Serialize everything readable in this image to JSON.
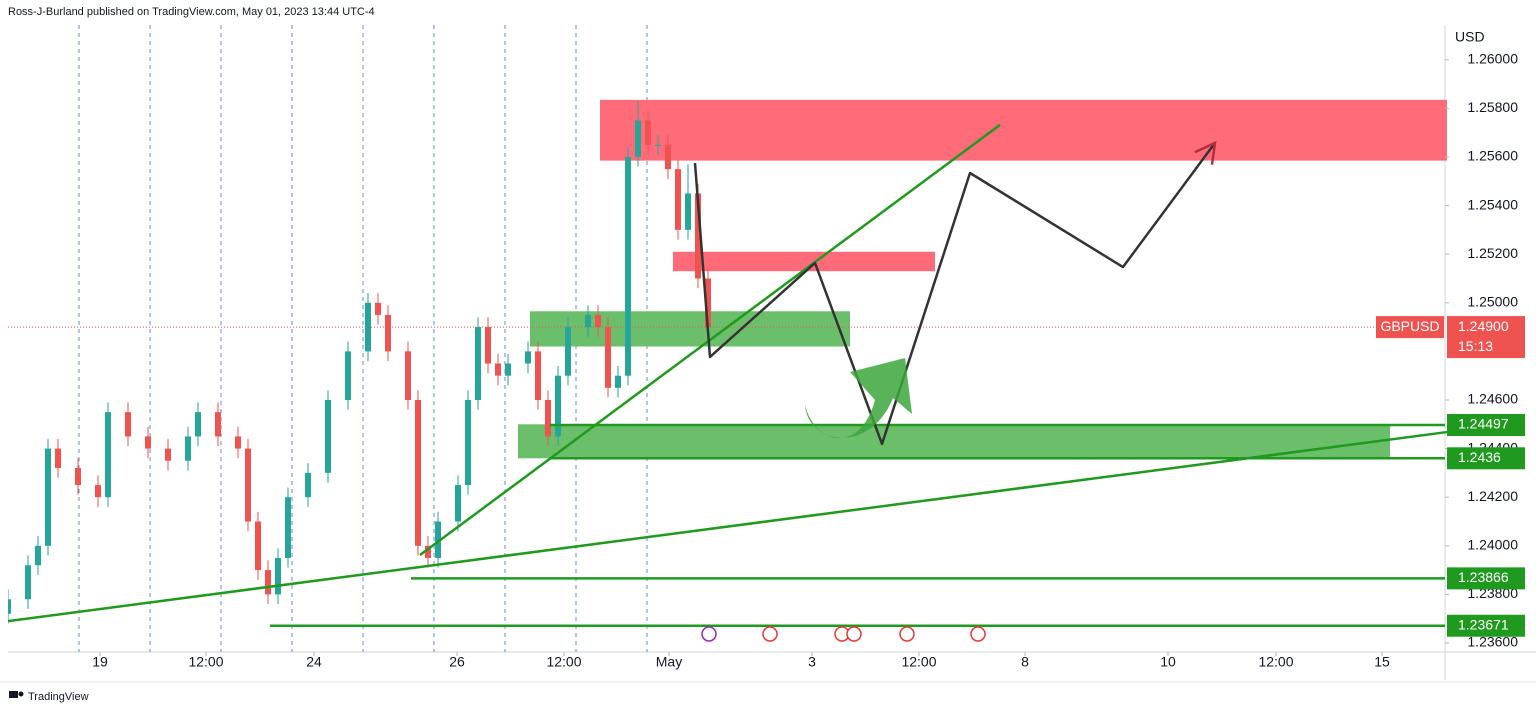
{
  "chart_data": {
    "type": "candlestick",
    "header": "Ross-J-Burland published on TradingView.com, May 01, 2023 13:44 UTC-4",
    "currency": "USD",
    "symbol": "GBPUSD",
    "last_price": {
      "value": 1.249,
      "label": "1.24900"
    },
    "countdown": "15:13",
    "brand": "TradingView",
    "xlim": [
      0,
      143.7
    ],
    "ylim": [
      1.23563,
      1.26143
    ],
    "xticks": [
      {
        "value": 9.2,
        "label": "19"
      },
      {
        "value": 19.8,
        "label": "12:00"
      },
      {
        "value": 30.6,
        "label": "24"
      },
      {
        "value": 44.9,
        "label": "26"
      },
      {
        "value": 55.6,
        "label": "12:00"
      },
      {
        "value": 66.1,
        "label": "May"
      },
      {
        "value": 80.4,
        "label": "3"
      },
      {
        "value": 91.1,
        "label": "12:00"
      },
      {
        "value": 101.7,
        "label": "8"
      },
      {
        "value": 116,
        "label": "10"
      },
      {
        "value": 126.8,
        "label": "12:00"
      },
      {
        "value": 137.4,
        "label": "15"
      }
    ],
    "yticks": [
      {
        "value": 1.26,
        "label": "1.26000"
      },
      {
        "value": 1.258,
        "label": "1.25800"
      },
      {
        "value": 1.256,
        "label": "1.25600"
      },
      {
        "value": 1.254,
        "label": "1.25400"
      },
      {
        "value": 1.252,
        "label": "1.25200"
      },
      {
        "value": 1.25,
        "label": "1.25000"
      },
      {
        "value": 1.246,
        "label": "1.24600"
      },
      {
        "value": 1.244,
        "label": "1.24400"
      },
      {
        "value": 1.242,
        "label": "1.24200"
      },
      {
        "value": 1.24,
        "label": "1.24000"
      },
      {
        "value": 1.238,
        "label": "1.23800"
      },
      {
        "value": 1.236,
        "label": "1.23600"
      }
    ],
    "session_lines": [
      7.1,
      14.2,
      21.3,
      28.4,
      35.5,
      42.6,
      49.7,
      56.8,
      63.9
    ],
    "up_color": "#26a69a",
    "down_color": "#ef5350",
    "candles": {
      "x": [
        0,
        2,
        3,
        4,
        5,
        7,
        9,
        10,
        12,
        14,
        16,
        18,
        19,
        21,
        23,
        24,
        25,
        26,
        27,
        28,
        30,
        32,
        34,
        36,
        37,
        38,
        40,
        41,
        42,
        43,
        45,
        46,
        47,
        48,
        49,
        50,
        52,
        53,
        54,
        55,
        56,
        58,
        59,
        60,
        61,
        62,
        63,
        64,
        65,
        66,
        67,
        68,
        69,
        70
      ],
      "open": [
        1.2372,
        1.2378,
        1.2392,
        1.24,
        1.244,
        1.2432,
        1.2425,
        1.242,
        1.2455,
        1.2445,
        1.244,
        1.2435,
        1.2445,
        1.2455,
        1.2445,
        1.244,
        1.241,
        1.239,
        1.238,
        1.2395,
        1.242,
        1.243,
        1.246,
        1.248,
        1.25,
        1.2495,
        1.248,
        1.246,
        1.24,
        1.2395,
        1.241,
        1.2425,
        1.246,
        1.249,
        1.2475,
        1.247,
        1.2475,
        1.248,
        1.246,
        1.2445,
        1.247,
        1.249,
        1.2495,
        1.249,
        1.2465,
        1.247,
        1.256,
        1.2575,
        1.2565,
        1.2565,
        1.2555,
        1.253,
        1.2545,
        1.251
      ],
      "high": [
        1.2382,
        1.2396,
        1.2404,
        1.2444,
        1.2444,
        1.2436,
        1.2429,
        1.2459,
        1.2459,
        1.2449,
        1.2444,
        1.2449,
        1.2459,
        1.2459,
        1.2449,
        1.2444,
        1.2414,
        1.2394,
        1.2399,
        1.2424,
        1.2434,
        1.2464,
        1.2484,
        1.2504,
        1.2504,
        1.2499,
        1.2484,
        1.2464,
        1.2404,
        1.2414,
        1.2429,
        1.2464,
        1.2494,
        1.2494,
        1.2479,
        1.2479,
        1.2484,
        1.2484,
        1.2464,
        1.2474,
        1.2494,
        1.2499,
        1.2499,
        1.2494,
        1.2474,
        1.2564,
        1.2583,
        1.2579,
        1.2569,
        1.2569,
        1.2559,
        1.2557,
        1.2549,
        1.2514
      ],
      "low": [
        1.2368,
        1.2374,
        1.2388,
        1.2396,
        1.2428,
        1.2421,
        1.2416,
        1.2416,
        1.2441,
        1.2436,
        1.2431,
        1.2431,
        1.2441,
        1.2441,
        1.2436,
        1.2406,
        1.2386,
        1.2376,
        1.2376,
        1.2391,
        1.2416,
        1.2426,
        1.2456,
        1.2476,
        1.2491,
        1.2476,
        1.2456,
        1.2396,
        1.2391,
        1.2391,
        1.2406,
        1.2421,
        1.2456,
        1.2471,
        1.2466,
        1.2466,
        1.2471,
        1.2456,
        1.2441,
        1.2441,
        1.2466,
        1.2486,
        1.2486,
        1.2461,
        1.2461,
        1.2466,
        1.2556,
        1.2561,
        1.2561,
        1.2551,
        1.2526,
        1.2526,
        1.2506,
        1.2486
      ],
      "close": [
        1.2378,
        1.2392,
        1.24,
        1.244,
        1.2432,
        1.2425,
        1.242,
        1.2455,
        1.2445,
        1.244,
        1.2435,
        1.2445,
        1.2455,
        1.2445,
        1.244,
        1.241,
        1.239,
        1.238,
        1.2395,
        1.242,
        1.243,
        1.246,
        1.248,
        1.25,
        1.2495,
        1.248,
        1.246,
        1.24,
        1.2395,
        1.241,
        1.2425,
        1.246,
        1.249,
        1.2475,
        1.247,
        1.2475,
        1.248,
        1.246,
        1.2445,
        1.247,
        1.249,
        1.2495,
        1.249,
        1.2465,
        1.247,
        1.256,
        1.2575,
        1.2565,
        1.2565,
        1.2555,
        1.253,
        1.2545,
        1.251,
        1.249
      ]
    },
    "zones": [
      {
        "x": [
          59.2,
          143.9
        ],
        "y": [
          1.25585,
          1.25835
        ],
        "color": "#ff6b78"
      },
      {
        "x": [
          66.5,
          92.7
        ],
        "y": [
          1.2513,
          1.2521
        ],
        "color": "#ff6b78"
      },
      {
        "x": [
          52.2,
          84.2
        ],
        "y": [
          1.2482,
          1.24965
        ],
        "color": "#6cbf6a"
      },
      {
        "x": [
          51,
          138.2
        ],
        "y": [
          1.2436,
          1.245
        ],
        "color": "#6cbf6a"
      }
    ],
    "level_color": "#1f9a1f",
    "levels": [
      {
        "value": 1.24497,
        "x_start": 54.2
      },
      {
        "value": 1.2436,
        "x_start": 54.2
      },
      {
        "value": 1.23866,
        "x_start": 40.3
      },
      {
        "value": 1.23671,
        "x_start": 26.2
      }
    ],
    "trendlines": [
      {
        "x": [
          41.2,
          99.2
        ],
        "y": [
          1.23962,
          1.25732
        ]
      },
      {
        "x": [
          0,
          143.9
        ],
        "y": [
          1.2369,
          1.24468
        ]
      }
    ],
    "projection": {
      "x": [
        68.7,
        70.2,
        80.7,
        87.4,
        96.2,
        111.5,
        120.7
      ],
      "y": [
        1.25575,
        1.24777,
        1.25164,
        1.24419,
        1.25534,
        1.25147,
        1.25658
      ],
      "color": "#333333"
    }
  }
}
